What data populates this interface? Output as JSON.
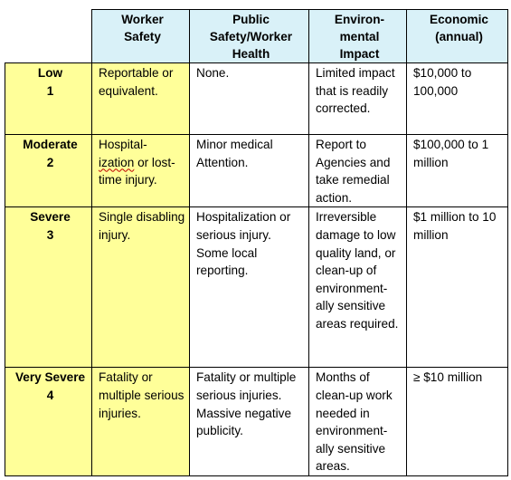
{
  "headers": {
    "worker_safety": "Worker\nSafety",
    "public_safety": "Public\nSafety/Worker\nHealth",
    "environmental": "Environ-\nmental\nImpact",
    "economic": "Economic\n(annual)"
  },
  "rows": [
    {
      "level": "Low",
      "number": "1",
      "worker_safety": "Reportable or equivalent.",
      "public_safety": "None.",
      "environmental": "Limited impact that is readily corrected.",
      "economic": "$10,000 to 100,000"
    },
    {
      "level": "Moderate",
      "number": "2",
      "worker_safety_pre": "Hospital-\n",
      "worker_safety_squiggle": "ization",
      "worker_safety_post": " or lost-time injury.",
      "public_safety": "Minor medical Attention.",
      "environmental": "Report to Agencies and take remedial action.",
      "economic": "$100,000 to 1 million"
    },
    {
      "level": "Severe",
      "number": "3",
      "worker_safety": "Single disabling injury.",
      "public_safety": "Hospitalization or serious injury. Some local reporting.",
      "environmental": "Irreversible damage to low quality land, or clean-up of environment-ally sensitive areas required.",
      "economic": "$1 million to 10 million"
    },
    {
      "level": "Very Severe",
      "number": "4",
      "worker_safety": "Fatality or multiple serious injuries.",
      "public_safety": "Fatality or multiple serious injuries. Massive negative publicity.",
      "environmental": "Months of clean-up work needed in environment-ally sensitive areas.",
      "economic": "≥ $10 million"
    }
  ]
}
